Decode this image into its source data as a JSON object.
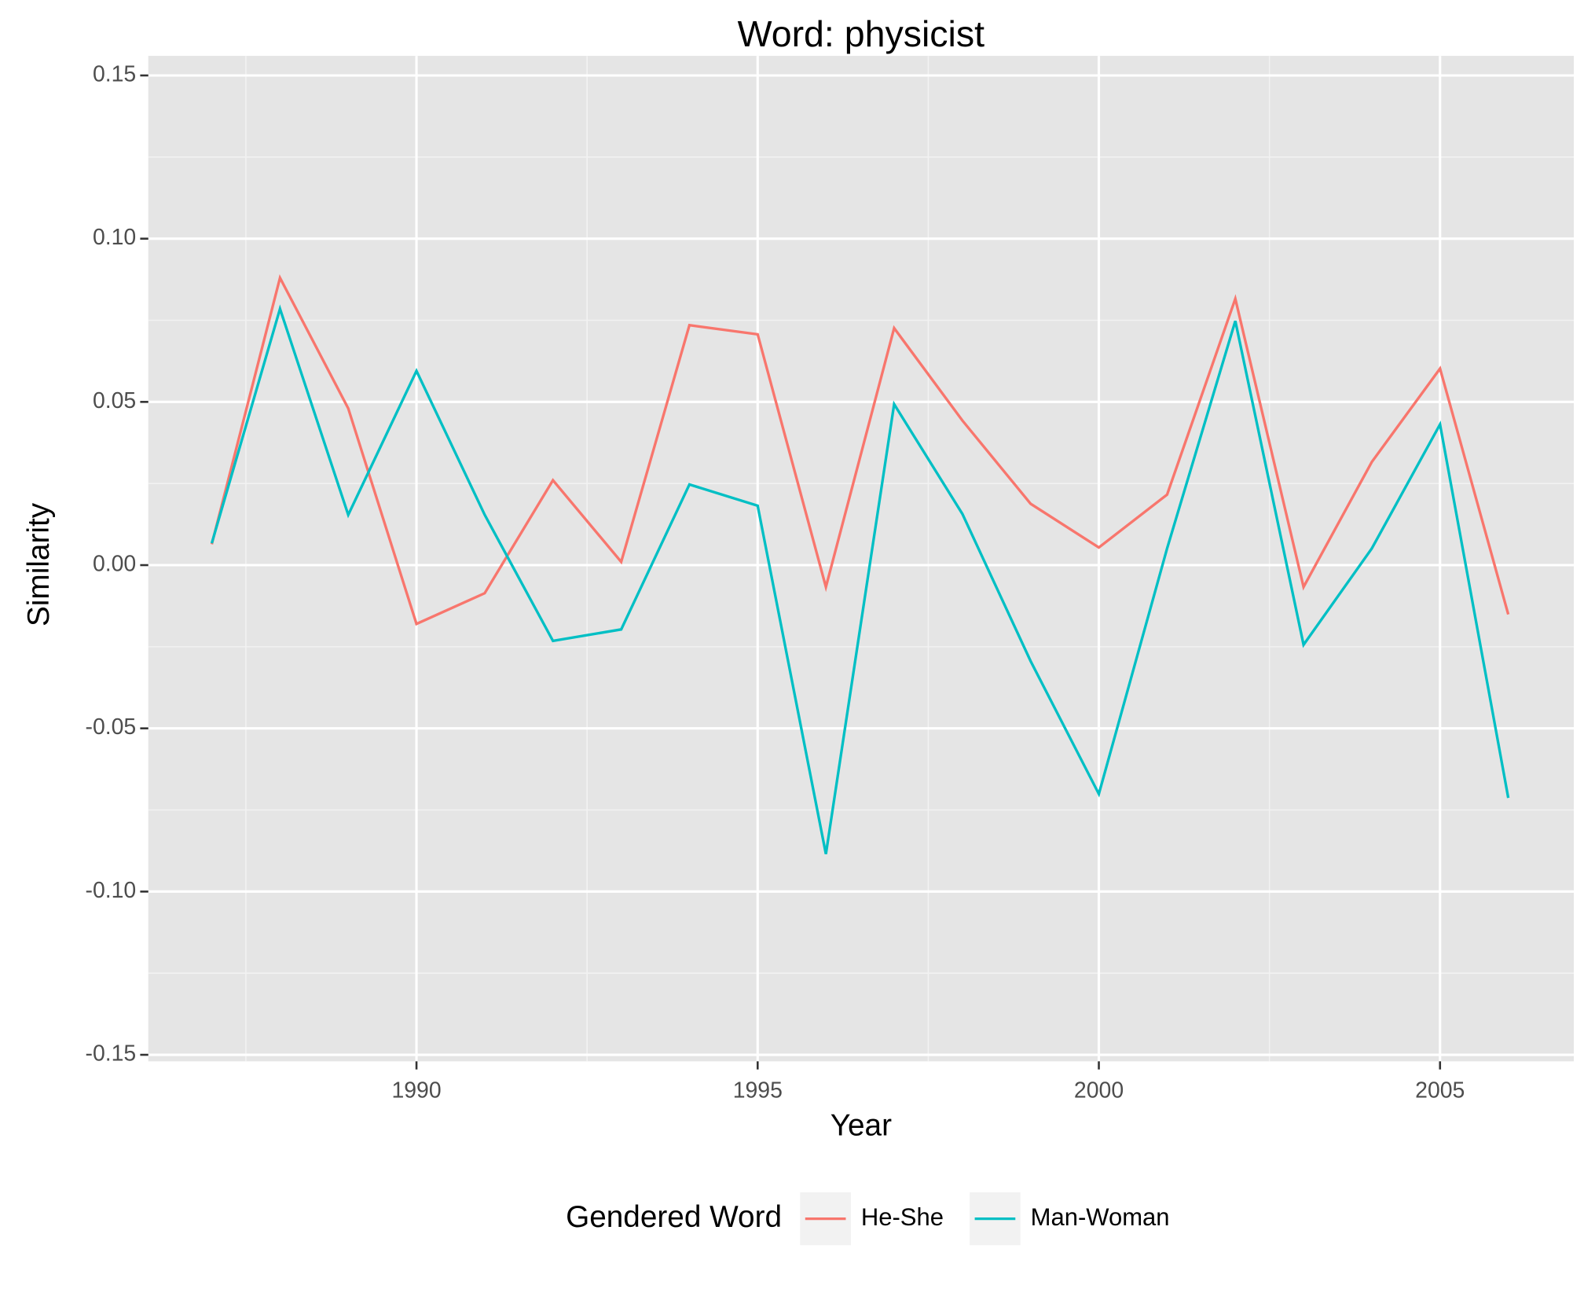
{
  "chart_data": {
    "type": "line",
    "title": "Word: physicist",
    "x_label": "Year",
    "y_label": "Similarity",
    "x": [
      1987,
      1988,
      1989,
      1990,
      1991,
      1992,
      1993,
      1994,
      1995,
      1996,
      1997,
      1998,
      1999,
      2000,
      2001,
      2002,
      2003,
      2004,
      2005,
      2006
    ],
    "series": [
      {
        "name": "He-She",
        "color": "#F8766D",
        "values": [
          0.0064,
          0.088,
          0.048,
          -0.018,
          -0.0086,
          0.026,
          0.001,
          0.0735,
          0.0707,
          -0.0067,
          0.0726,
          0.0443,
          0.0188,
          0.0054,
          0.0216,
          0.0816,
          -0.0067,
          0.0316,
          0.0602,
          -0.0151
        ]
      },
      {
        "name": "Man-Woman",
        "color": "#00BFC4",
        "values": [
          0.0067,
          0.0785,
          0.0154,
          0.0595,
          0.0154,
          -0.0232,
          -0.0197,
          0.0247,
          0.0182,
          -0.0885,
          0.0493,
          0.0157,
          -0.0294,
          -0.0701,
          0.0051,
          0.0748,
          -0.0244,
          0.0051,
          0.0431,
          -0.0713
        ]
      }
    ],
    "legend_title": "Gendered Word",
    "legend_position": "bottom",
    "xlim": [
      1986.07,
      2006.96
    ],
    "xticks": [
      1990,
      1995,
      2000,
      2005
    ],
    "ylim": [
      -0.152,
      0.156
    ],
    "yticks": [
      {
        "value": -0.15,
        "label": "-0.15"
      },
      {
        "value": -0.1,
        "label": "-0.10"
      },
      {
        "value": -0.05,
        "label": "-0.05"
      },
      {
        "value": 0,
        "label": "0.00"
      },
      {
        "value": 0.05,
        "label": "0.05"
      },
      {
        "value": 0.1,
        "label": "0.10"
      },
      {
        "value": 0.15,
        "label": "0.15"
      }
    ],
    "grid": true
  }
}
